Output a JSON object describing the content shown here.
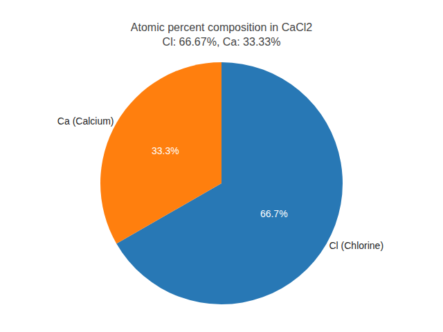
{
  "chart_data": {
    "type": "pie",
    "title": "Atomic percent composition in CaCl2\nCl: 66.67%, Ca: 33.33%",
    "categories": [
      "Cl (Chlorine)",
      "Ca (Calcium)"
    ],
    "values": [
      66.7,
      33.3
    ],
    "value_labels": [
      "66.7%",
      "33.3%"
    ],
    "colors": [
      "#2878b5",
      "#ff7f0e"
    ],
    "data_labels": true
  }
}
